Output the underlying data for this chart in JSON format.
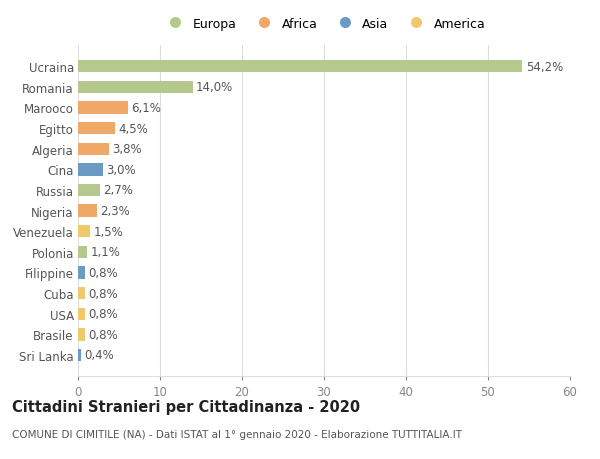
{
  "labels": [
    "Sri Lanka",
    "Brasile",
    "USA",
    "Cuba",
    "Filippine",
    "Polonia",
    "Venezuela",
    "Nigeria",
    "Russia",
    "Cina",
    "Algeria",
    "Egitto",
    "Marooco",
    "Romania",
    "Ucraina"
  ],
  "values": [
    0.4,
    0.8,
    0.8,
    0.8,
    0.8,
    1.1,
    1.5,
    2.3,
    2.7,
    3.0,
    3.8,
    4.5,
    6.1,
    14.0,
    54.2
  ],
  "pct_labels": [
    "0,4%",
    "0,8%",
    "0,8%",
    "0,8%",
    "0,8%",
    "1,1%",
    "1,5%",
    "2,3%",
    "2,7%",
    "3,0%",
    "3,8%",
    "4,5%",
    "6,1%",
    "14,0%",
    "54,2%"
  ],
  "continents": [
    "Asia",
    "America",
    "America",
    "America",
    "Asia",
    "Europa",
    "America",
    "Africa",
    "Europa",
    "Asia",
    "Africa",
    "Africa",
    "Africa",
    "Europa",
    "Europa"
  ],
  "colors": {
    "Europa": "#b5c98e",
    "Africa": "#f0a868",
    "Asia": "#6b9bc3",
    "America": "#f0c96c"
  },
  "title": "Cittadini Stranieri per Cittadinanza - 2020",
  "subtitle": "COMUNE DI CIMITILE (NA) - Dati ISTAT al 1° gennaio 2020 - Elaborazione TUTTITALIA.IT",
  "xlim": [
    0,
    60
  ],
  "xticks": [
    0,
    10,
    20,
    30,
    40,
    50,
    60
  ],
  "background_color": "#ffffff",
  "bar_height": 0.6,
  "grid_color": "#dddddd",
  "label_fontsize": 8.5,
  "value_fontsize": 8.5,
  "title_fontsize": 10.5,
  "subtitle_fontsize": 7.5,
  "legend_order": [
    "Europa",
    "Africa",
    "Asia",
    "America"
  ]
}
